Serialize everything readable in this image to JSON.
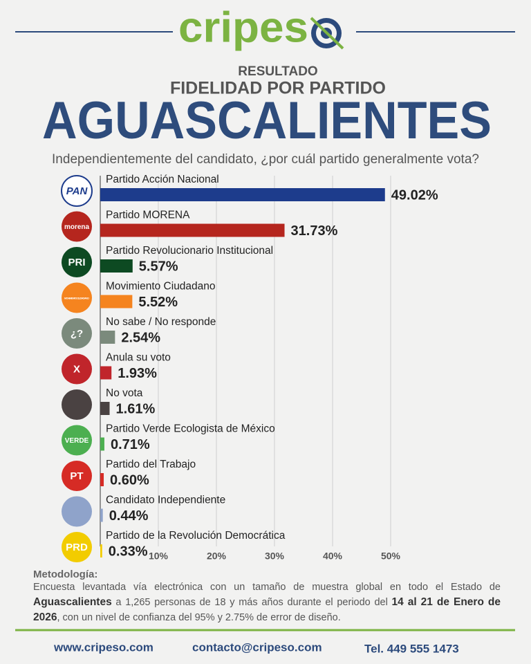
{
  "header": {
    "brand": "cripes",
    "kicker": "RESULTADO",
    "subtitle": "FIDELIDAD POR PARTIDO",
    "title": "AGUASCALIENTES",
    "question": "Independientemente del candidato, ¿por cuál partido generalmente vota?"
  },
  "chart_data": {
    "type": "hbar",
    "categories": [
      "Partido Acción Nacional",
      "Partido MORENA",
      "Partido Revolucionario Institucional",
      "Movimiento Ciudadano",
      "No sabe / No responde",
      "Anula su voto",
      "No vota",
      "Partido Verde Ecologista de México",
      "Partido del Trabajo",
      "Candidato Independiente",
      "Partido de la Revolución Democrática"
    ],
    "values": [
      49.02,
      31.73,
      5.57,
      5.52,
      2.54,
      1.93,
      1.61,
      0.71,
      0.6,
      0.44,
      0.33
    ],
    "value_labels": [
      "49.02%",
      "31.73%",
      "5.57%",
      "5.52%",
      "2.54%",
      "1.93%",
      "1.61%",
      "0.71%",
      "0.60%",
      "0.44%",
      "0.33%"
    ],
    "colors": [
      "#1d3c8c",
      "#b5261e",
      "#0d4a22",
      "#f5841f",
      "#7b8a7c",
      "#c0252b",
      "#4a4242",
      "#4caf50",
      "#d62b25",
      "#8fa3ca",
      "#f2cc00"
    ],
    "logo_texts": [
      "PAN",
      "morena",
      "PRI",
      "MOVIMIENTO CIUDADANO",
      "¿?",
      "X",
      null,
      "VERDE",
      "PT",
      null,
      "PRD"
    ],
    "xlim": [
      0,
      60
    ],
    "xticks": [
      {
        "value": 10,
        "label": "10%"
      },
      {
        "value": 20,
        "label": "20%"
      },
      {
        "value": 30,
        "label": "30%"
      },
      {
        "value": 40,
        "label": "40%"
      },
      {
        "value": 50,
        "label": "50%"
      }
    ],
    "grid": true
  },
  "methodology": {
    "title": "Metodología:",
    "segments": [
      "Encuesta levantada vía electrónica con un tamaño de muestra global en todo el Estado de ",
      "Aguascalientes",
      " a 1,265 personas de 18 y más años durante el periodo del ",
      "14 al 21 de Enero de 2026",
      ", con un nivel de confianza del 95% y 2.75% de error de diseño."
    ],
    "bold": [
      1,
      3
    ]
  },
  "footer": {
    "web": "www.cripeso.com",
    "email": "contacto@cripeso.com",
    "phone": "Tel. 449 555 1473"
  }
}
